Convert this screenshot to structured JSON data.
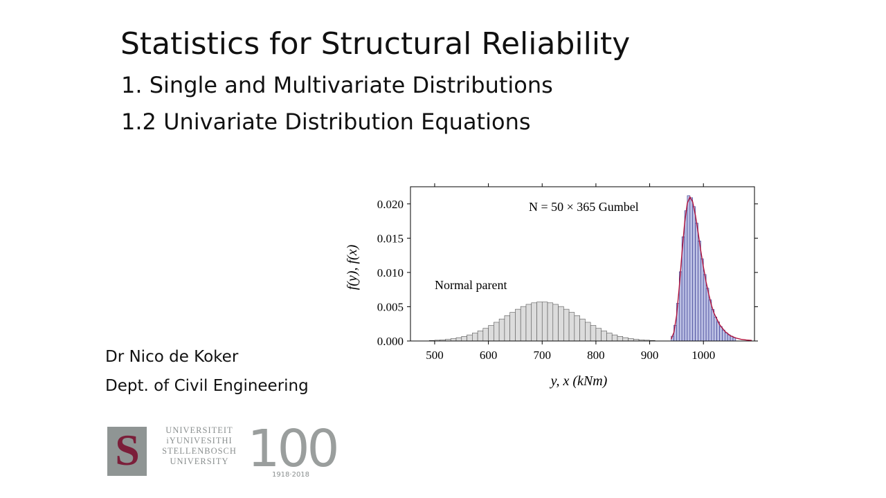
{
  "slide": {
    "title": "Statistics for Structural Reliability",
    "subtitle": "1. Single and Multivariate Distributions",
    "section": "1.2 Univariate Distribution Equations",
    "author": "Dr Nico de Koker",
    "department": "Dept. of Civil Engineering",
    "logo": {
      "lines": [
        "UNIVERSITEIT",
        "iYUNIVESITHI",
        "STELLENBOSCH",
        "UNIVERSITY"
      ],
      "anniversary": "100",
      "years": "1918·2018"
    }
  },
  "chart_data": {
    "type": "histogram",
    "xlabel": "y, x (kNm)",
    "ylabel": "f(y), f(x)",
    "xlim": [
      455,
      1095
    ],
    "ylim": [
      0,
      0.0225
    ],
    "xticks": [
      500,
      600,
      700,
      800,
      900,
      1000
    ],
    "yticks": [
      {
        "value": 0,
        "label": "0.000"
      },
      {
        "value": 0.005,
        "label": "0.005"
      },
      {
        "value": 0.01,
        "label": "0.010"
      },
      {
        "value": 0.015,
        "label": "0.015"
      },
      {
        "value": 0.02,
        "label": "0.020"
      }
    ],
    "series": [
      {
        "name": "Normal parent",
        "color": "#dcdcdc",
        "edgecolor": "#555555",
        "bins": [
          490,
          500,
          510,
          520,
          530,
          540,
          550,
          560,
          570,
          580,
          590,
          600,
          610,
          620,
          630,
          640,
          650,
          660,
          670,
          680,
          690,
          700,
          710,
          720,
          730,
          740,
          750,
          760,
          770,
          780,
          790,
          800,
          810,
          820,
          830,
          840,
          850,
          860,
          870,
          880,
          890,
          900,
          910
        ],
        "values": [
          7.8e-05,
          0.00012,
          0.00017,
          0.00025,
          0.00035,
          0.00049,
          0.00067,
          0.00089,
          0.00116,
          0.00148,
          0.00185,
          0.00227,
          0.00273,
          0.00321,
          0.0037,
          0.00418,
          0.00463,
          0.00503,
          0.00535,
          0.00557,
          0.00569,
          0.00569,
          0.00557,
          0.00535,
          0.00503,
          0.00463,
          0.00418,
          0.0037,
          0.00321,
          0.00273,
          0.00227,
          0.00185,
          0.00148,
          0.00116,
          0.00089,
          0.00067,
          0.00049,
          0.00035,
          0.00025,
          0.00017,
          0.00012,
          7.8e-05
        ]
      },
      {
        "name": "N = 50 × 365 Gumbel",
        "color": "#bcc0e4",
        "edgecolor": "#2c2f8a",
        "bins": [
          940,
          945,
          950,
          955,
          960,
          965,
          970,
          975,
          980,
          985,
          990,
          995,
          1000,
          1005,
          1010,
          1015,
          1020,
          1025,
          1030,
          1035,
          1040,
          1045,
          1050,
          1055,
          1060
        ],
        "values": [
          0.0007,
          0.0023,
          0.0055,
          0.0101,
          0.0152,
          0.019,
          0.0212,
          0.0209,
          0.0196,
          0.0172,
          0.0146,
          0.012,
          0.0097,
          0.0077,
          0.006,
          0.0046,
          0.0035,
          0.0028,
          0.0021,
          0.0016,
          0.0012,
          0.0009,
          0.0007,
          0.0005
        ]
      },
      {
        "type": "line",
        "color": "#b0103a",
        "x": [
          940,
          945,
          950,
          955,
          960,
          965,
          970,
          975,
          980,
          985,
          990,
          995,
          1000,
          1005,
          1010,
          1015,
          1020,
          1030,
          1040,
          1050,
          1060,
          1070,
          1080,
          1090
        ],
        "values": [
          0.00026,
          0.00123,
          0.00367,
          0.0078,
          0.01277,
          0.0172,
          0.0201,
          0.021,
          0.0203,
          0.0184,
          0.0159,
          0.0132,
          0.0108,
          0.0086,
          0.0068,
          0.0052,
          0.004,
          0.0024,
          0.0014,
          0.00078,
          0.00044,
          0.00025,
          0.00014,
          8e-05
        ]
      }
    ]
  }
}
